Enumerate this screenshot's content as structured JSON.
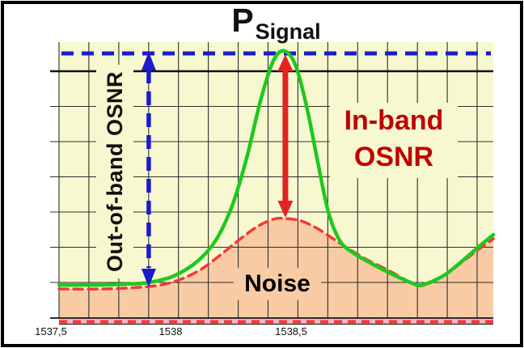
{
  "figure": {
    "title_main": "P",
    "title_subscript": "Signal",
    "annotations": {
      "out_of_band_label": "Out-of-band OSNR",
      "in_band_label_line1": "In-band",
      "in_band_label_line2": "OSNR",
      "noise_label": "Noise"
    },
    "x_axis": {
      "tick_labels": [
        "1537,5",
        "1538",
        "1538,5"
      ]
    }
  },
  "colors": {
    "plot_background": "#F8F8D0",
    "noise_fill": "#F8CBA4",
    "bottom_band": "#F7B6BD",
    "grid": "#2E2E2E",
    "grid_major": "#111111",
    "signal_curve": "#1FC81F",
    "noise_curve": "#F03A3A",
    "marker_blue": "#1B1BCE",
    "marker_red": "#E52222",
    "in_band_text": "#C00000",
    "text": "#111111"
  },
  "chart_data": {
    "type": "line",
    "title": "P Signal",
    "xlabel": "",
    "ylabel": "",
    "x_tick_labels": [
      "1537,5",
      "1538",
      "1538,5"
    ],
    "x_range": [
      1537.52,
      1539.33
    ],
    "y_axis": {
      "visible_labels": false,
      "relative_power_range": [
        0,
        1
      ]
    },
    "grid": true,
    "series": [
      {
        "name": "signal",
        "points": [
          [
            1537.524,
            0.124
          ],
          [
            1537.682,
            0.124
          ],
          [
            1537.8,
            0.127
          ],
          [
            1537.897,
            0.133
          ],
          [
            1538.002,
            0.158
          ],
          [
            1538.103,
            0.215
          ],
          [
            1538.18,
            0.297
          ],
          [
            1538.247,
            0.427
          ],
          [
            1538.305,
            0.6
          ],
          [
            1538.362,
            0.812
          ],
          [
            1538.416,
            0.964
          ],
          [
            1538.463,
            1.0
          ],
          [
            1538.51,
            0.942
          ],
          [
            1538.557,
            0.782
          ],
          [
            1538.604,
            0.57
          ],
          [
            1538.645,
            0.397
          ],
          [
            1538.692,
            0.291
          ],
          [
            1538.746,
            0.245
          ],
          [
            1538.827,
            0.203
          ],
          [
            1538.911,
            0.164
          ],
          [
            1538.988,
            0.133
          ],
          [
            1539.035,
            0.124
          ],
          [
            1539.123,
            0.158
          ],
          [
            1539.204,
            0.215
          ],
          [
            1539.271,
            0.267
          ],
          [
            1539.332,
            0.312
          ]
        ]
      },
      {
        "name": "noise",
        "points": [
          [
            1537.524,
            0.109
          ],
          [
            1537.715,
            0.109
          ],
          [
            1537.897,
            0.118
          ],
          [
            1538.002,
            0.136
          ],
          [
            1538.103,
            0.176
          ],
          [
            1538.187,
            0.23
          ],
          [
            1538.271,
            0.291
          ],
          [
            1538.348,
            0.342
          ],
          [
            1538.416,
            0.37
          ],
          [
            1538.463,
            0.373
          ],
          [
            1538.53,
            0.364
          ],
          [
            1538.598,
            0.336
          ],
          [
            1538.665,
            0.297
          ],
          [
            1538.732,
            0.258
          ],
          [
            1538.813,
            0.215
          ],
          [
            1538.894,
            0.179
          ],
          [
            1538.968,
            0.142
          ],
          [
            1539.029,
            0.121
          ],
          [
            1539.113,
            0.152
          ],
          [
            1539.197,
            0.206
          ],
          [
            1539.271,
            0.258
          ],
          [
            1539.332,
            0.297
          ]
        ]
      }
    ],
    "markers": {
      "p_signal_level_line": {
        "label": "P Signal",
        "relative_power": 1.0,
        "style": "dashed-blue"
      },
      "out_of_band_arrow": {
        "label": "Out-of-band OSNR",
        "nm": 1537.897,
        "style": "dashed-blue-double-arrow"
      },
      "in_band_arrow": {
        "label": "In-band OSNR",
        "nm": 1538.466,
        "style": "solid-red-double-arrow"
      }
    }
  }
}
